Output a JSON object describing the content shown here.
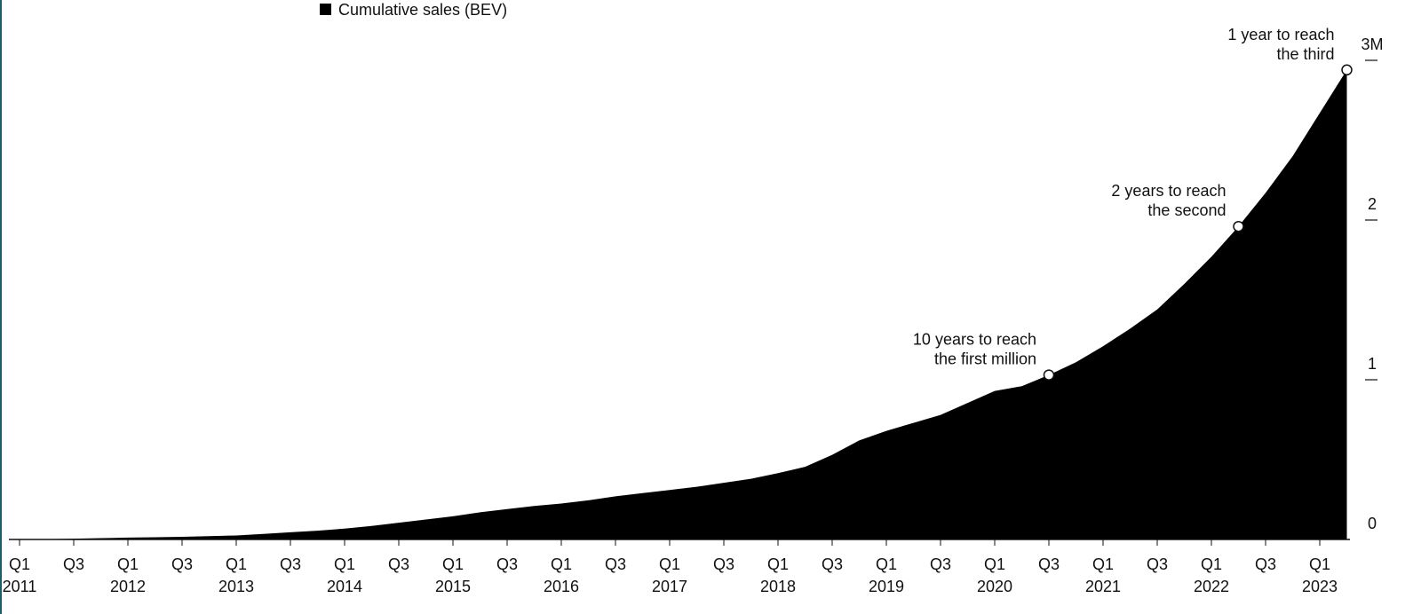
{
  "chart_data": {
    "type": "area",
    "series": [
      {
        "name": "Cumulative sales (BEV)",
        "color": "#000000",
        "values": [
          0,
          0.002,
          0.005,
          0.008,
          0.012,
          0.014,
          0.017,
          0.021,
          0.025,
          0.035,
          0.045,
          0.055,
          0.068,
          0.085,
          0.105,
          0.125,
          0.145,
          0.17,
          0.19,
          0.21,
          0.225,
          0.245,
          0.27,
          0.29,
          0.31,
          0.33,
          0.355,
          0.38,
          0.415,
          0.455,
          0.53,
          0.62,
          0.68,
          0.73,
          0.78,
          0.855,
          0.93,
          0.96,
          1.03,
          1.11,
          1.21,
          1.32,
          1.44,
          1.6,
          1.77,
          1.96,
          2.17,
          2.4,
          2.67,
          2.94
        ]
      }
    ],
    "categories": [
      "Q1\n2011",
      null,
      "Q3",
      null,
      "Q1\n2012",
      null,
      "Q3",
      null,
      "Q1\n2013",
      null,
      "Q3",
      null,
      "Q1\n2014",
      null,
      "Q3",
      null,
      "Q1\n2015",
      null,
      "Q3",
      null,
      "Q1\n2016",
      null,
      "Q3",
      null,
      "Q1\n2017",
      null,
      "Q3",
      null,
      "Q1\n2018",
      null,
      "Q3",
      null,
      "Q1\n2019",
      null,
      "Q3",
      null,
      "Q1\n2020",
      null,
      "Q3",
      null,
      "Q1\n2021",
      null,
      "Q3",
      null,
      "Q1\n2022",
      null,
      "Q3",
      null,
      "Q1\n2023",
      null
    ],
    "ylim": [
      0,
      3.1
    ],
    "yticks": [
      0,
      1,
      2,
      {
        "value": 3,
        "label": "3M"
      }
    ],
    "annotations": [
      [
        "10 years to reach",
        "the first million"
      ],
      [
        "2 years to reach",
        "the second"
      ],
      [
        "1 year to reach",
        "the third"
      ]
    ]
  }
}
